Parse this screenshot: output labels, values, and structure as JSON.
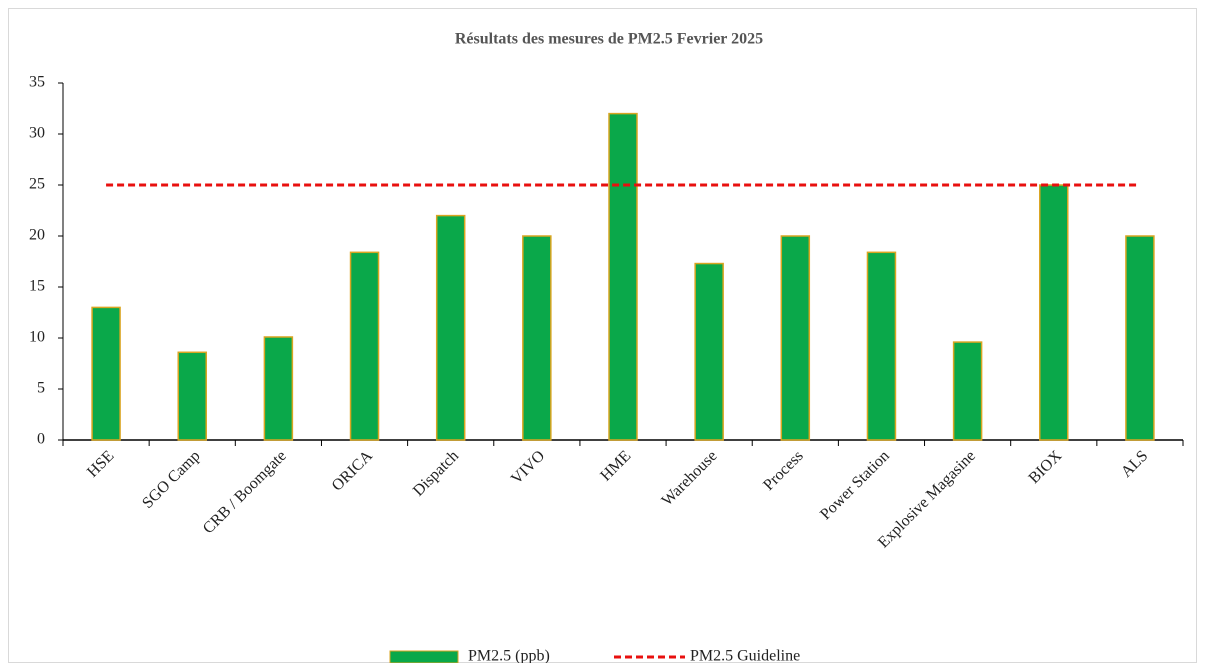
{
  "chart_data": {
    "type": "bar",
    "title": "Résultats des  mesures de PM2.5 Fevrier 2025",
    "categories": [
      "HSE",
      "SGO Camp",
      "CRB / Boomgate",
      "ORICA",
      "Dispatch",
      "VIVO",
      "HME",
      "Warehouse",
      "Process",
      "Power Station",
      "Explosive Magasine",
      "BIOX",
      "ALS"
    ],
    "series": [
      {
        "name": "PM2.5 (ppb)",
        "type": "bar",
        "color": "#0aa84a",
        "edge_color": "#d9a521",
        "values": [
          13,
          8.6,
          10.1,
          18.4,
          22,
          20,
          32,
          17.3,
          20,
          18.4,
          9.6,
          25,
          20
        ]
      },
      {
        "name": "PM2.5 Guideline",
        "type": "line",
        "dash": true,
        "color": "#e8100f",
        "values": [
          25,
          25,
          25,
          25,
          25,
          25,
          25,
          25,
          25,
          25,
          25,
          25,
          25
        ]
      }
    ],
    "ylim": [
      0,
      35
    ],
    "yticks": [
      0,
      5,
      10,
      15,
      20,
      25,
      30,
      35
    ],
    "grid": false,
    "legend": "bottom"
  }
}
